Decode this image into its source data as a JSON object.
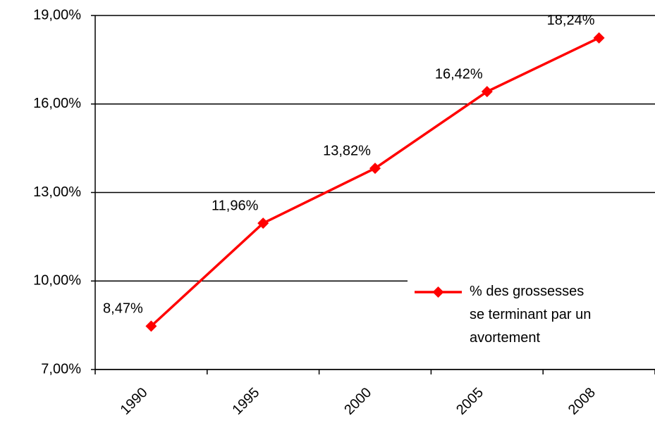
{
  "chart_data": {
    "type": "line",
    "categories": [
      "1990",
      "1995",
      "2000",
      "2005",
      "2008"
    ],
    "series": [
      {
        "name": "% des grossesses se terminant par un avortement",
        "color": "#ff0000",
        "values": [
          8.47,
          11.96,
          13.82,
          16.42,
          18.24
        ],
        "value_labels": [
          "8,47%",
          "11,96%",
          "13,82%",
          "16,42%",
          "18,24%"
        ]
      }
    ],
    "ylim": [
      7,
      19
    ],
    "yticks": [
      {
        "value": 7,
        "label": "7,00%"
      },
      {
        "value": 10,
        "label": "10,00%"
      },
      {
        "value": 13,
        "label": "13,00%"
      },
      {
        "value": 16,
        "label": "16,00%"
      },
      {
        "value": 19,
        "label": "19,00%"
      }
    ],
    "grid": true,
    "legend": "lower right"
  }
}
